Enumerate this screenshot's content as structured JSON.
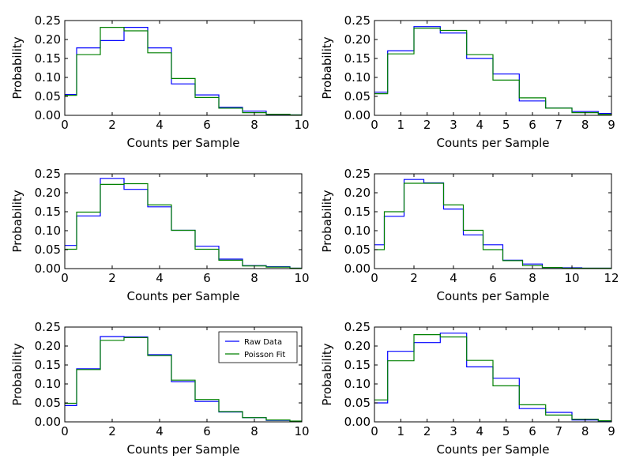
{
  "figure": {
    "legend": {
      "location": "upper right of panel 5"
    }
  },
  "chart_data": [
    {
      "type": "histogram-step",
      "xlabel": "Counts per Sample",
      "ylabel": "Probability",
      "xlim": [
        0,
        10
      ],
      "ylim": [
        0,
        0.25
      ],
      "xticks": [
        "0",
        "2",
        "4",
        "6",
        "8",
        "10"
      ],
      "yticks": [
        "0.00",
        "0.05",
        "0.10",
        "0.15",
        "0.20",
        "0.25"
      ],
      "bin_edges": [
        0,
        0.5,
        1.5,
        2.5,
        3.5,
        4.5,
        5.5,
        6.5,
        7.5,
        8.5,
        9.5,
        10
      ],
      "series": [
        {
          "name": "Raw Data",
          "color": "#0000ff",
          "values": [
            0.055,
            0.178,
            0.197,
            0.232,
            0.178,
            0.083,
            0.054,
            0.021,
            0.011,
            0.001,
            0.001
          ]
        },
        {
          "name": "Poisson Fit",
          "color": "#008000",
          "values": [
            0.053,
            0.16,
            0.232,
            0.223,
            0.165,
            0.097,
            0.047,
            0.019,
            0.007,
            0.003,
            0.001
          ]
        }
      ]
    },
    {
      "type": "histogram-step",
      "xlabel": "Counts per Sample",
      "ylabel": "Probability",
      "xlim": [
        0,
        9
      ],
      "ylim": [
        0,
        0.25
      ],
      "xticks": [
        "0",
        "1",
        "2",
        "3",
        "4",
        "5",
        "6",
        "7",
        "8",
        "9"
      ],
      "yticks": [
        "0.00",
        "0.05",
        "0.10",
        "0.15",
        "0.20",
        "0.25"
      ],
      "bin_edges": [
        0,
        0.5,
        1.5,
        2.5,
        3.5,
        4.5,
        5.5,
        6.5,
        7.5,
        8.5,
        9
      ],
      "series": [
        {
          "name": "Raw Data",
          "color": "#0000ff",
          "values": [
            0.061,
            0.17,
            0.234,
            0.217,
            0.15,
            0.109,
            0.038,
            0.019,
            0.01,
            0.005
          ]
        },
        {
          "name": "Poisson Fit",
          "color": "#008000",
          "values": [
            0.057,
            0.162,
            0.23,
            0.224,
            0.16,
            0.093,
            0.046,
            0.019,
            0.007,
            0.003
          ]
        }
      ]
    },
    {
      "type": "histogram-step",
      "xlabel": "Counts per Sample",
      "ylabel": "Probability",
      "xlim": [
        0,
        10
      ],
      "ylim": [
        0,
        0.25
      ],
      "xticks": [
        "0",
        "2",
        "4",
        "6",
        "8",
        "10"
      ],
      "yticks": [
        "0.00",
        "0.05",
        "0.10",
        "0.15",
        "0.20",
        "0.25"
      ],
      "bin_edges": [
        0,
        0.5,
        1.5,
        2.5,
        3.5,
        4.5,
        5.5,
        6.5,
        7.5,
        8.5,
        9.5,
        10
      ],
      "series": [
        {
          "name": "Raw Data",
          "color": "#0000ff",
          "values": [
            0.061,
            0.139,
            0.238,
            0.209,
            0.163,
            0.101,
            0.059,
            0.025,
            0.008,
            0.005,
            0.001
          ]
        },
        {
          "name": "Poisson Fit",
          "color": "#008000",
          "values": [
            0.051,
            0.149,
            0.222,
            0.224,
            0.168,
            0.101,
            0.051,
            0.022,
            0.007,
            0.004,
            0.001
          ]
        }
      ]
    },
    {
      "type": "histogram-step",
      "xlabel": "Counts per Sample",
      "ylabel": "Probability",
      "xlim": [
        0,
        12
      ],
      "ylim": [
        0,
        0.25
      ],
      "xticks": [
        "0",
        "2",
        "4",
        "6",
        "8",
        "10",
        "12"
      ],
      "yticks": [
        "0.00",
        "0.05",
        "0.10",
        "0.15",
        "0.20",
        "0.25"
      ],
      "bin_edges": [
        0,
        0.5,
        1.5,
        2.5,
        3.5,
        4.5,
        5.5,
        6.5,
        7.5,
        8.5,
        9.5,
        10.5,
        11.5,
        12
      ],
      "series": [
        {
          "name": "Raw Data",
          "color": "#0000ff",
          "values": [
            0.063,
            0.138,
            0.235,
            0.226,
            0.157,
            0.089,
            0.063,
            0.022,
            0.012,
            0.003,
            0.002,
            0.001,
            0.001
          ]
        },
        {
          "name": "Poisson Fit",
          "color": "#008000",
          "values": [
            0.05,
            0.15,
            0.225,
            0.225,
            0.168,
            0.101,
            0.05,
            0.021,
            0.008,
            0.003,
            0.001,
            0.001,
            0.001
          ]
        }
      ]
    },
    {
      "type": "histogram-step",
      "xlabel": "Counts per Sample",
      "ylabel": "Probability",
      "xlim": [
        0,
        10
      ],
      "ylim": [
        0,
        0.25
      ],
      "xticks": [
        "0",
        "2",
        "4",
        "6",
        "8",
        "10"
      ],
      "yticks": [
        "0.00",
        "0.05",
        "0.10",
        "0.15",
        "0.20",
        "0.25"
      ],
      "bin_edges": [
        0,
        0.5,
        1.5,
        2.5,
        3.5,
        4.5,
        5.5,
        6.5,
        7.5,
        8.5,
        9.5,
        10
      ],
      "series": [
        {
          "name": "Raw Data",
          "color": "#0000ff",
          "values": [
            0.043,
            0.14,
            0.225,
            0.224,
            0.177,
            0.106,
            0.054,
            0.026,
            0.011,
            0.004,
            0.001
          ]
        },
        {
          "name": "Poisson Fit",
          "color": "#008000",
          "values": [
            0.049,
            0.138,
            0.215,
            0.222,
            0.175,
            0.11,
            0.059,
            0.027,
            0.011,
            0.005,
            0.002
          ]
        }
      ]
    },
    {
      "type": "histogram-step",
      "xlabel": "Counts per Sample",
      "ylabel": "Probability",
      "xlim": [
        0,
        9
      ],
      "ylim": [
        0,
        0.25
      ],
      "xticks": [
        "0",
        "1",
        "2",
        "3",
        "4",
        "5",
        "6",
        "7",
        "8",
        "9"
      ],
      "yticks": [
        "0.00",
        "0.05",
        "0.10",
        "0.15",
        "0.20",
        "0.25"
      ],
      "bin_edges": [
        0,
        0.5,
        1.5,
        2.5,
        3.5,
        4.5,
        5.5,
        6.5,
        7.5,
        8.5,
        9
      ],
      "series": [
        {
          "name": "Raw Data",
          "color": "#0000ff",
          "values": [
            0.05,
            0.186,
            0.209,
            0.234,
            0.145,
            0.115,
            0.035,
            0.025,
            0.005,
            0.002
          ]
        },
        {
          "name": "Poisson Fit",
          "color": "#008000",
          "values": [
            0.058,
            0.161,
            0.23,
            0.224,
            0.162,
            0.095,
            0.045,
            0.018,
            0.007,
            0.003
          ]
        }
      ]
    }
  ]
}
